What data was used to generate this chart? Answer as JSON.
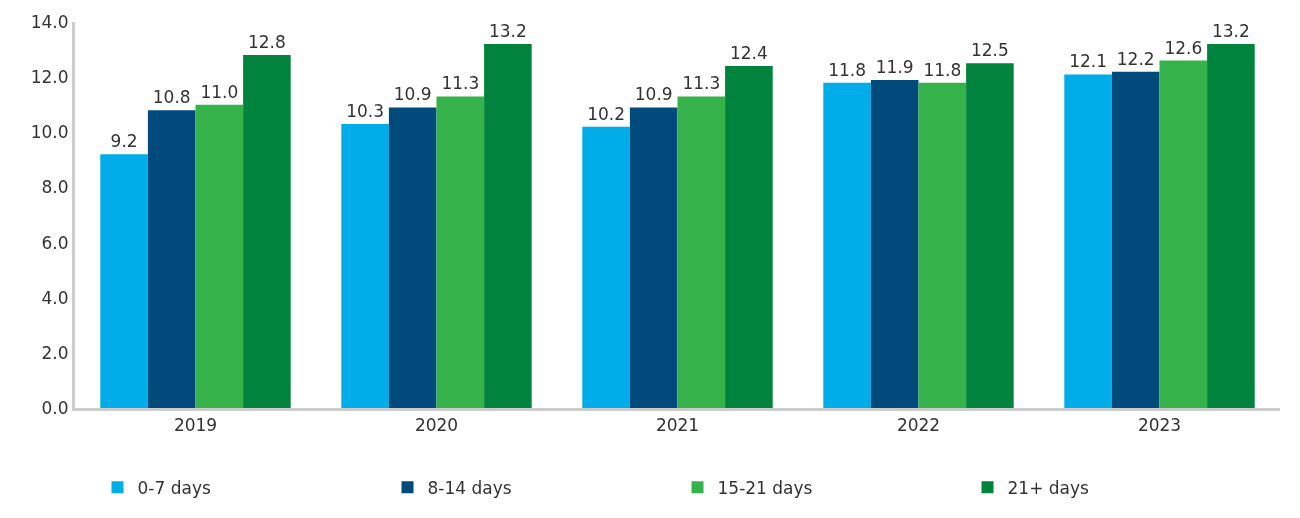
{
  "chart_data": {
    "type": "bar",
    "categories": [
      "2019",
      "2020",
      "2021",
      "2022",
      "2023"
    ],
    "series": [
      {
        "name": "0-7 days",
        "color": "#00ade8",
        "values": [
          9.2,
          10.3,
          10.2,
          11.8,
          12.1
        ],
        "value_labels": [
          "9.2",
          "10.3",
          "10.2",
          "11.8",
          "12.1"
        ]
      },
      {
        "name": "8-14 days",
        "color": "#004a7c",
        "values": [
          10.8,
          10.9,
          10.9,
          11.9,
          12.2
        ],
        "value_labels": [
          "10.8",
          "10.9",
          "10.9",
          "11.9",
          "12.2"
        ]
      },
      {
        "name": "15-21 days",
        "color": "#35b34a",
        "values": [
          11.0,
          11.3,
          11.3,
          11.8,
          12.6
        ],
        "value_labels": [
          "11.0",
          "11.3",
          "11.3",
          "11.8",
          "12.6"
        ]
      },
      {
        "name": "21+ days",
        "color": "#00843d",
        "values": [
          12.8,
          13.2,
          12.4,
          12.5,
          13.2
        ],
        "value_labels": [
          "12.8",
          "13.2",
          "12.4",
          "12.5",
          "13.2"
        ]
      }
    ],
    "ylim": [
      0,
      14
    ],
    "yticks": [
      {
        "value": 0,
        "label": "0.0"
      },
      {
        "value": 2,
        "label": "2.0"
      },
      {
        "value": 4,
        "label": "4.0"
      },
      {
        "value": 6,
        "label": "6.0"
      },
      {
        "value": 8,
        "label": "8.0"
      },
      {
        "value": 10,
        "label": "10.0"
      },
      {
        "value": 12,
        "label": "12.0"
      },
      {
        "value": 14,
        "label": "14.0"
      }
    ],
    "grid": false,
    "legend": "bottom"
  }
}
